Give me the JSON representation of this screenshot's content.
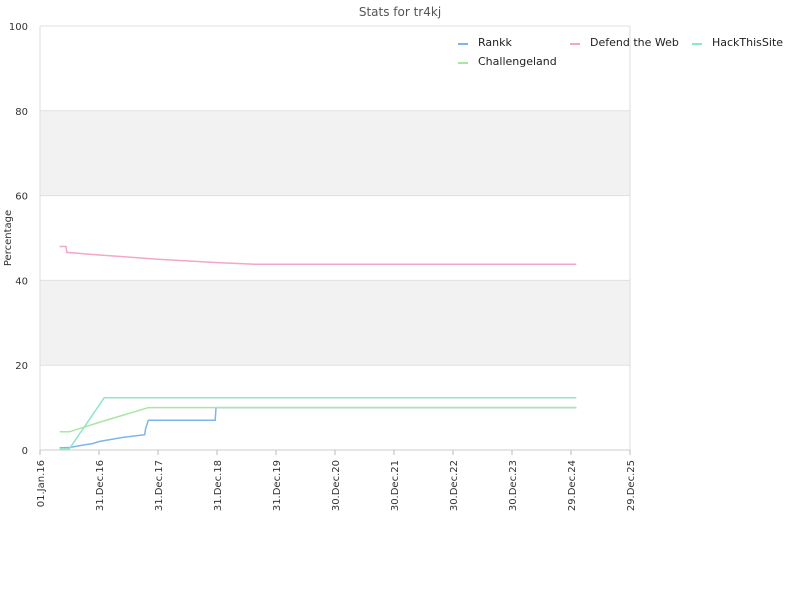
{
  "chart_data": {
    "type": "line",
    "title": "Stats for tr4kj",
    "xlabel": "",
    "ylabel": "Percentage",
    "ylim": [
      0,
      100
    ],
    "xlim": [
      "2016-01-01",
      "2025-12-29"
    ],
    "y_ticks": [
      "0",
      "20",
      "40",
      "60",
      "80",
      "100"
    ],
    "x_ticks": [
      {
        "label": "01.Jan.16",
        "date": "2016-01-01"
      },
      {
        "label": "31.Dec.16",
        "date": "2016-12-31"
      },
      {
        "label": "31.Dec.17",
        "date": "2017-12-31"
      },
      {
        "label": "31.Dec.18",
        "date": "2018-12-31"
      },
      {
        "label": "31.Dec.19",
        "date": "2019-12-31"
      },
      {
        "label": "30.Dec.20",
        "date": "2020-12-30"
      },
      {
        "label": "30.Dec.21",
        "date": "2021-12-30"
      },
      {
        "label": "30.Dec.22",
        "date": "2022-12-30"
      },
      {
        "label": "30.Dec.23",
        "date": "2023-12-30"
      },
      {
        "label": "29.Dec.24",
        "date": "2024-12-29"
      },
      {
        "label": "29.Dec.25",
        "date": "2025-12-29"
      }
    ],
    "grid_bands": true,
    "legend_position": "top-right",
    "series": [
      {
        "name": "Rankk",
        "color": "#7cb5ec",
        "points": [
          [
            "2016-05-01",
            0.5
          ],
          [
            "2016-07-01",
            0.6
          ],
          [
            "2016-10-01",
            1.2
          ],
          [
            "2016-11-20",
            1.5
          ],
          [
            "2017-01-01",
            2.0
          ],
          [
            "2017-06-01",
            3.0
          ],
          [
            "2017-10-10",
            3.6
          ],
          [
            "2017-10-15",
            5.0
          ],
          [
            "2017-11-01",
            7.0
          ],
          [
            "2018-12-20",
            7.0
          ],
          [
            "2018-12-25",
            10.0
          ],
          [
            "2025-01-31",
            10.0
          ]
        ]
      },
      {
        "name": "Defend the Web",
        "color": "#f4a6c8",
        "points": [
          [
            "2016-05-01",
            48.0
          ],
          [
            "2016-06-10",
            48.0
          ],
          [
            "2016-06-15",
            46.6
          ],
          [
            "2017-01-01",
            46.0
          ],
          [
            "2018-01-01",
            45.0
          ],
          [
            "2019-01-01",
            44.2
          ],
          [
            "2019-09-01",
            43.8
          ],
          [
            "2025-01-31",
            43.8
          ]
        ]
      },
      {
        "name": "HackThisSite",
        "color": "#90e5cf",
        "points": [
          [
            "2016-05-01",
            0.3
          ],
          [
            "2016-07-01",
            0.3
          ],
          [
            "2017-02-01",
            12.3
          ],
          [
            "2025-01-31",
            12.3
          ]
        ]
      },
      {
        "name": "Challengeland",
        "color": "#a6e8a0",
        "points": [
          [
            "2016-05-01",
            4.3
          ],
          [
            "2016-07-01",
            4.3
          ],
          [
            "2017-01-01",
            6.5
          ],
          [
            "2017-11-01",
            10.0
          ],
          [
            "2025-01-31",
            10.0
          ]
        ]
      }
    ]
  }
}
